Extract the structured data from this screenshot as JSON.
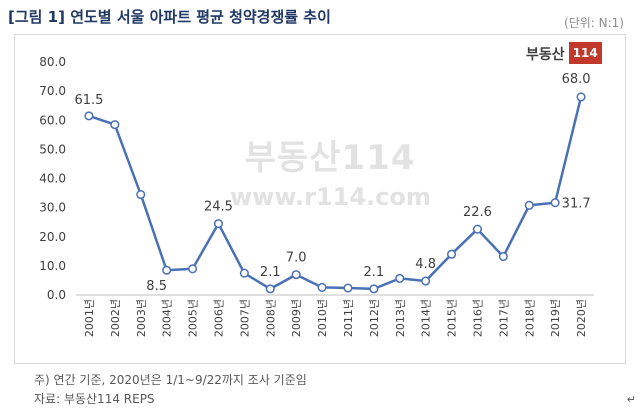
{
  "figure": {
    "title": "[그림 1] 연도별 서울 아파트 평균 청약경쟁률 추이",
    "unit": "(단위: N:1)",
    "logo_text": "부동산",
    "logo_num": "114",
    "watermark_logo": "부동산114",
    "watermark_url": "www.r114.com",
    "note_1": "주) 연간 기준, 2020년은 1/1~9/22까지 조사 기준임",
    "note_2": "자료: 부동산114 REPS",
    "para_mark": "↵"
  },
  "chart_data": {
    "type": "line",
    "title": "[그림 1] 연도별 서울 아파트 평균 청약경쟁률 추이",
    "xlabel": "",
    "ylabel": "",
    "unit": "N:1",
    "ylim": [
      0,
      80
    ],
    "yticks": [
      "0.0",
      "10.0",
      "20.0",
      "30.0",
      "40.0",
      "50.0",
      "60.0",
      "70.0",
      "80.0"
    ],
    "categories": [
      "2001년",
      "2002년",
      "2003년",
      "2004년",
      "2005년",
      "2006년",
      "2007년",
      "2008년",
      "2009년",
      "2010년",
      "2011년",
      "2012년",
      "2013년",
      "2014년",
      "2015년",
      "2016년",
      "2017년",
      "2018년",
      "2019년",
      "2020년"
    ],
    "values": [
      61.5,
      58.5,
      34.5,
      8.5,
      9.0,
      24.5,
      7.5,
      2.1,
      7.0,
      2.6,
      2.4,
      2.1,
      5.7,
      4.8,
      14.0,
      22.6,
      13.2,
      30.8,
      31.7,
      68.0
    ],
    "data_labels": [
      {
        "index": 0,
        "text": "61.5"
      },
      {
        "index": 3,
        "text": "8.5"
      },
      {
        "index": 5,
        "text": "24.5"
      },
      {
        "index": 7,
        "text": "2.1"
      },
      {
        "index": 8,
        "text": "7.0"
      },
      {
        "index": 11,
        "text": "2.1"
      },
      {
        "index": 13,
        "text": "4.8"
      },
      {
        "index": 15,
        "text": "22.6"
      },
      {
        "index": 18,
        "text": "31.7"
      },
      {
        "index": 19,
        "text": "68.0"
      }
    ],
    "colors": {
      "line": "#4a70b5",
      "marker_fill": "#ffffff",
      "axis": "#bfbfbf",
      "text": "#404040"
    },
    "grid": false,
    "legend": "none"
  }
}
